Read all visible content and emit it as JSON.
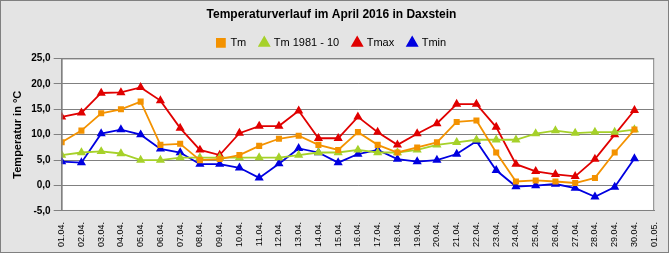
{
  "chart_data": {
    "type": "line",
    "title": "Temperaturverlauf im April 2016 in Daxstein",
    "y_label": "Temperatur in °C",
    "categories": [
      "01.04.",
      "02.04.",
      "03.04.",
      "04.04.",
      "05.04.",
      "06.04.",
      "07.04.",
      "08.04.",
      "09.04.",
      "10.04.",
      "11.04.",
      "12.04.",
      "13.04.",
      "14.04.",
      "15.04.",
      "16.04.",
      "17.04.",
      "18.04.",
      "19.04.",
      "20.04.",
      "21.04.",
      "22.04.",
      "23.04.",
      "24.04.",
      "25.04.",
      "26.04.",
      "27.04.",
      "28.04.",
      "29.04.",
      "30.04.",
      "01.05."
    ],
    "series": [
      {
        "name": "Tm",
        "color": "#f39200",
        "marker": "square",
        "line_style": "solid",
        "values": [
          8.5,
          10.8,
          14.2,
          15.0,
          16.5,
          8.0,
          8.2,
          5.0,
          5.2,
          6.0,
          7.8,
          9.2,
          9.8,
          8.0,
          7.0,
          10.5,
          8.0,
          6.5,
          7.5,
          8.5,
          12.5,
          12.8,
          6.5,
          0.8,
          1.0,
          0.8,
          0.5,
          1.5,
          6.5,
          11.0,
          null
        ]
      },
      {
        "name": "Tm 1981 - 10",
        "color": "#a6d12a",
        "marker": "triangle",
        "line_style": "solid",
        "values": [
          6.0,
          6.5,
          6.7,
          6.3,
          5.0,
          5.0,
          5.5,
          5.5,
          5.5,
          5.5,
          5.5,
          5.5,
          6.0,
          6.5,
          6.5,
          7.0,
          6.5,
          6.5,
          7.0,
          8.0,
          8.5,
          9.0,
          9.0,
          9.0,
          10.2,
          10.8,
          10.3,
          10.5,
          10.5,
          11.0,
          null
        ]
      },
      {
        "name": "Tmax",
        "color": "#e00000",
        "marker": "triangle",
        "line_style": "solid",
        "values": [
          13.5,
          14.3,
          18.2,
          18.3,
          19.3,
          16.7,
          11.3,
          7.0,
          6.0,
          10.3,
          11.7,
          11.7,
          14.7,
          9.3,
          9.3,
          13.5,
          10.5,
          8.0,
          10.2,
          12.2,
          16.0,
          16.0,
          11.5,
          4.2,
          2.8,
          2.2,
          1.8,
          5.2,
          10.0,
          14.8,
          null
        ]
      },
      {
        "name": "Tmin",
        "color": "#0000e0",
        "marker": "triangle",
        "line_style": "solid",
        "values": [
          4.7,
          4.5,
          10.2,
          11.0,
          10.0,
          7.2,
          6.5,
          4.2,
          4.2,
          3.5,
          1.5,
          4.3,
          7.3,
          6.5,
          4.5,
          6.2,
          7.0,
          5.2,
          4.7,
          5.0,
          6.2,
          8.7,
          3.0,
          -0.2,
          0.0,
          0.3,
          -0.5,
          -2.2,
          -0.3,
          5.3,
          null
        ]
      }
    ],
    "ylim": [
      -5,
      25
    ],
    "yticks": [
      {
        "value": -5,
        "label": "-5,0"
      },
      {
        "value": 0,
        "label": "0,0"
      },
      {
        "value": 5,
        "label": "5,0"
      },
      {
        "value": 10,
        "label": "10,0"
      },
      {
        "value": 15,
        "label": "15,0"
      },
      {
        "value": 20,
        "label": "20,0"
      },
      {
        "value": 25,
        "label": "25,0"
      }
    ],
    "grid": true,
    "legend": "top"
  }
}
